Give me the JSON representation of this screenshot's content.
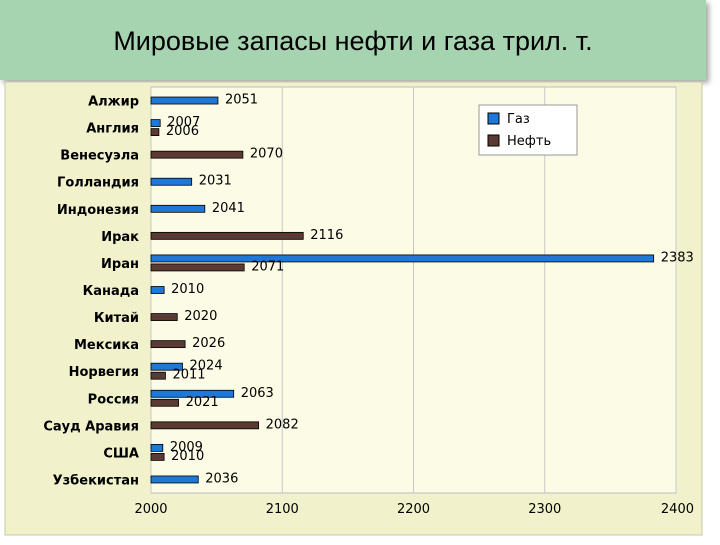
{
  "slide": {
    "title": "Мировые запасы нефти и газа трил. т."
  },
  "colors": {
    "header_bg": "#a6d3b0",
    "frame_bg": "#f1f1cc",
    "plot_bg": "#fbfbe6",
    "gas": "#1f78d8",
    "oil": "#5a3a32"
  },
  "chart_data": {
    "type": "bar",
    "orientation": "horizontal",
    "categories": [
      "Алжир",
      "Англия",
      "Венесуэла",
      "Голландия",
      "Индонезия",
      "Ирак",
      "Иран",
      "Канада",
      "Китай",
      "Мексика",
      "Норвегия",
      "Россия",
      "Сауд Аравия",
      "США",
      "Узбекистан"
    ],
    "series": [
      {
        "name": "Газ",
        "color": "#1f78d8",
        "values": [
          2051,
          2007,
          null,
          2031,
          2041,
          null,
          2383,
          2010,
          null,
          null,
          2024,
          2063,
          null,
          2009,
          2036
        ]
      },
      {
        "name": "Нефть",
        "color": "#5a3a32",
        "values": [
          null,
          2006,
          2070,
          null,
          null,
          2116,
          2071,
          null,
          2020,
          2026,
          2011,
          2021,
          2082,
          2010,
          null
        ]
      }
    ],
    "xlim": [
      2000,
      2400
    ],
    "xticks": [
      2000,
      2100,
      2200,
      2300,
      2400
    ],
    "grid": true,
    "legend_position": "top-right"
  }
}
